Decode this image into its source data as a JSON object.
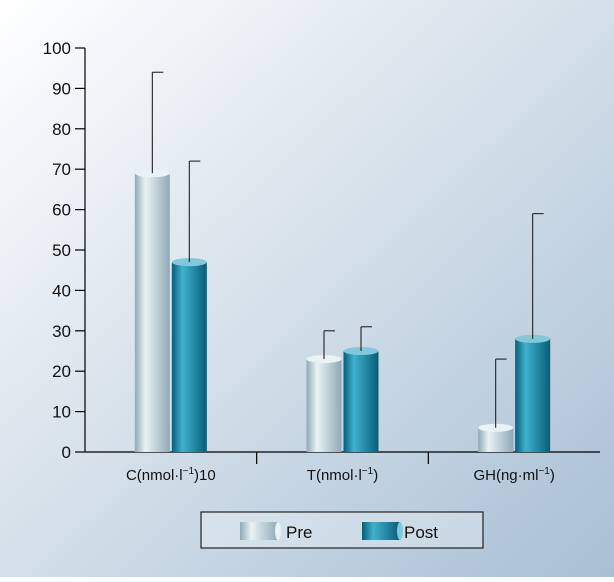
{
  "chart_data": {
    "type": "bar",
    "title": "",
    "xlabel": "",
    "ylabel": "",
    "ylim": [
      0,
      100
    ],
    "yticks": [
      0,
      10,
      20,
      30,
      40,
      50,
      60,
      70,
      80,
      90,
      100
    ],
    "categories": [
      {
        "base": "C(nmol·l",
        "sup": "−1",
        "post": ")10"
      },
      {
        "base": "T(nmol·l",
        "sup": "−1",
        "post": ")"
      },
      {
        "base": "GH(ng·ml",
        "sup": "−1",
        "post": ")"
      }
    ],
    "series": [
      {
        "name": "Pre",
        "values": [
          69,
          23,
          6
        ],
        "error_upper": [
          94,
          30,
          23
        ]
      },
      {
        "name": "Post",
        "values": [
          47,
          25,
          28
        ],
        "error_upper": [
          72,
          31,
          59
        ]
      }
    ],
    "legend_position": "bottom-center",
    "grid": false,
    "colors": {
      "background_light": "#ffffff",
      "background_dark": "#a8bfd4",
      "pre_dark": "#8fa9b7",
      "pre_light": "#e9f2f5",
      "post_dark": "#075d78",
      "post_light": "#3fb1cf",
      "axis": "#000000"
    }
  }
}
